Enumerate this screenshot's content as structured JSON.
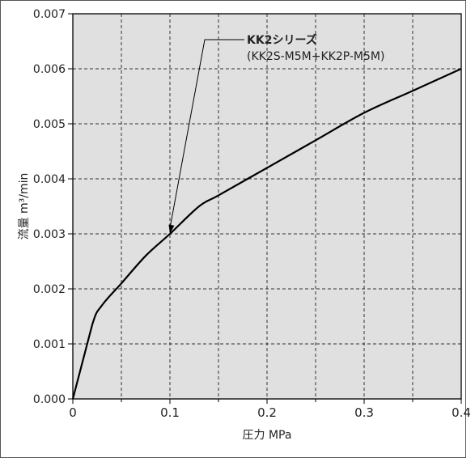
{
  "chart_data": {
    "type": "line",
    "title": "",
    "xlabel": "圧力 MPa",
    "ylabel": "流量 m³/min",
    "xlim": [
      0,
      0.4
    ],
    "ylim": [
      0,
      0.007
    ],
    "x_major_ticks": [
      "0",
      "0.1",
      "0.2",
      "0.3",
      "0.4"
    ],
    "x_minor_ticks": [
      0.05,
      0.15,
      0.25,
      0.35
    ],
    "y_ticks": [
      "0.000",
      "0.001",
      "0.002",
      "0.003",
      "0.004",
      "0.005",
      "0.006",
      "0.007"
    ],
    "grid": true,
    "series": [
      {
        "x": [
          0,
          0.02,
          0.03,
          0.05,
          0.075,
          0.1,
          0.13,
          0.15,
          0.2,
          0.25,
          0.3,
          0.35,
          0.4
        ],
        "y": [
          0,
          0.00135,
          0.0017,
          0.0021,
          0.0026,
          0.003,
          0.0035,
          0.0037,
          0.0042,
          0.0047,
          0.0052,
          0.0056,
          0.006
        ]
      }
    ],
    "annotation": {
      "line1": "KK2シリーズ",
      "line2": "(KK2S-M5M+KK2P-M5M)",
      "target": [
        0.1,
        0.003
      ]
    }
  },
  "colors": {
    "plot_background": "#e0e0e0",
    "grid": "#333333",
    "series": "#000000"
  }
}
